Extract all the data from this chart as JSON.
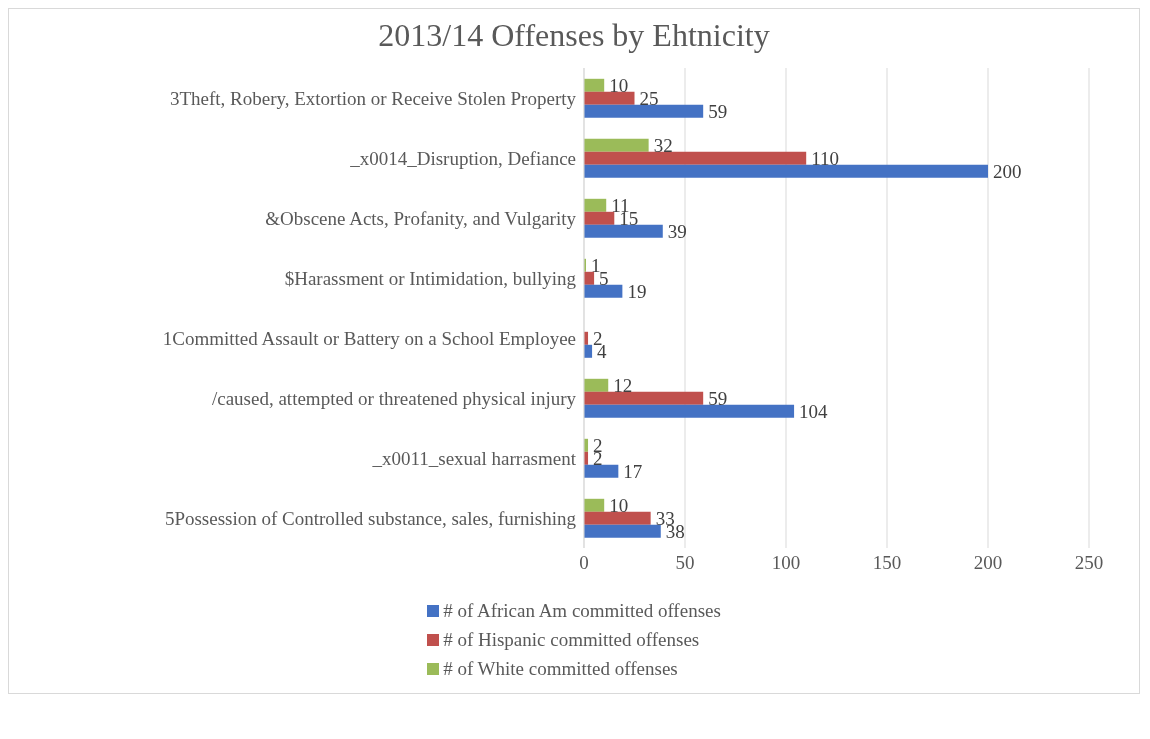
{
  "chart_data": {
    "type": "bar",
    "orientation": "horizontal",
    "title": "2013/14 Offenses by Ehtnicity",
    "categories": [
      "3Theft, Robery, Extortion or Receive Stolen Property",
      "_x0014_Disruption, Defiance",
      "&Obscene Acts, Profanity, and Vulgarity",
      "$Harassment or Intimidation, bullying",
      "1Committed Assault or Battery on a School Employee",
      "/caused, attempted or threatened physical injury",
      "_x0011_sexual harrasment",
      "5Possession of Controlled substance, sales, furnishing"
    ],
    "series": [
      {
        "name": "# of African Am committed offenses",
        "color": "#4472c4",
        "values": [
          59,
          200,
          39,
          19,
          4,
          104,
          17,
          38
        ]
      },
      {
        "name": "# of Hispanic committed offenses",
        "color": "#c0504d",
        "values": [
          25,
          110,
          15,
          5,
          2,
          59,
          2,
          33
        ]
      },
      {
        "name": "# of White committed offenses",
        "color": "#9bbb59",
        "values": [
          10,
          32,
          11,
          1,
          null,
          12,
          2,
          10
        ]
      }
    ],
    "xlim": [
      0,
      250
    ],
    "xticks": [
      0,
      50,
      100,
      150,
      200,
      250
    ],
    "grid": "x",
    "legend": "bottom",
    "data_labels": true
  }
}
